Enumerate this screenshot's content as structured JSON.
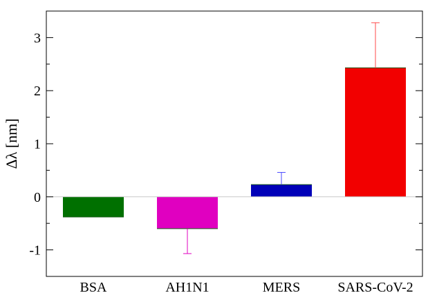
{
  "chart_data": {
    "type": "bar",
    "title": "",
    "xlabel": "",
    "ylabel": "Δλ [nm]",
    "ylim": [
      -1.5,
      3.5
    ],
    "yticks": [
      -1,
      0,
      1,
      2,
      3
    ],
    "ytick_labels": [
      "-1",
      "0",
      "1",
      "2",
      "3"
    ],
    "grid": false,
    "zero_line": true,
    "categories": [
      "BSA",
      "AH1N1",
      "MERS",
      "SARS-CoV-2"
    ],
    "values": [
      -0.38,
      -0.6,
      0.23,
      2.43
    ],
    "error_bars": [
      {
        "low": null,
        "high": null
      },
      {
        "low": -1.07,
        "high": null
      },
      {
        "low": null,
        "high": 0.46
      },
      {
        "low": null,
        "high": 3.28
      }
    ],
    "colors": [
      "#007000",
      "#e000c0",
      "#0000b8",
      "#f20000"
    ],
    "error_colors": [
      "#007000",
      "#e000c0",
      "#4a4aff",
      "#ff4a4a"
    ]
  }
}
